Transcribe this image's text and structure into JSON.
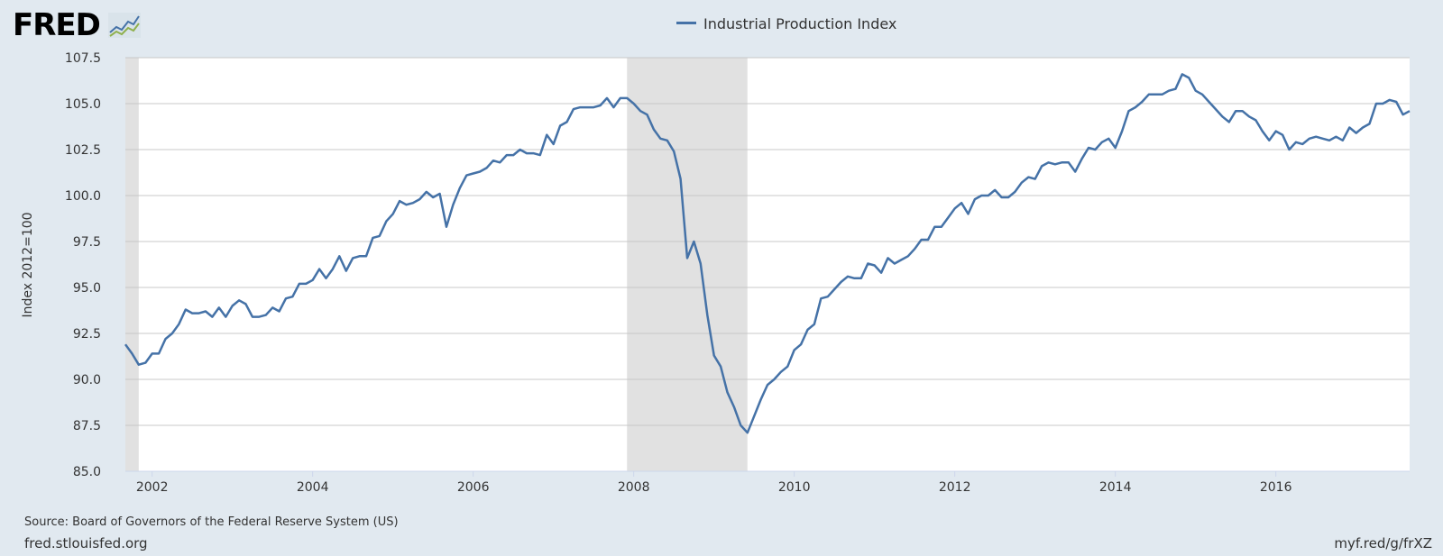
{
  "logo": {
    "text": "FRED"
  },
  "footer": {
    "source": "Source: Board of Governors of the Federal Reserve System (US)",
    "site": "fred.stlouisfed.org",
    "shortlink": "myf.red/g/frXZ"
  },
  "colors": {
    "line": "#4572a7",
    "recession": "#e1e1e1",
    "background": "#e1e9f0",
    "plot": "#ffffff",
    "grid": "#c8c8c8"
  },
  "chart_data": {
    "type": "line",
    "legend": "Industrial Production Index",
    "legend_position": "top-center",
    "ylabel": "Index 2012=100",
    "xlabel": "",
    "ylim": [
      85.0,
      107.5
    ],
    "yticks": [
      "85.0",
      "87.5",
      "90.0",
      "92.5",
      "95.0",
      "97.5",
      "100.0",
      "102.5",
      "105.0",
      "107.5"
    ],
    "xlim": [
      "2001-09",
      "2017-09"
    ],
    "xticks": [
      "2002",
      "2004",
      "2006",
      "2008",
      "2010",
      "2012",
      "2014",
      "2016"
    ],
    "grid": true,
    "recessions": [
      [
        "2001-03",
        "2001-11"
      ],
      [
        "2007-12",
        "2009-06"
      ]
    ],
    "series": [
      {
        "x": [
          "2001-09",
          "2001-10",
          "2001-11",
          "2001-12",
          "2002-01",
          "2002-02",
          "2002-03",
          "2002-04",
          "2002-05",
          "2002-06",
          "2002-07",
          "2002-08",
          "2002-09",
          "2002-10",
          "2002-11",
          "2002-12",
          "2003-01",
          "2003-02",
          "2003-03",
          "2003-04",
          "2003-05",
          "2003-06",
          "2003-07",
          "2003-08",
          "2003-09",
          "2003-10",
          "2003-11",
          "2003-12",
          "2004-01",
          "2004-02",
          "2004-03",
          "2004-04",
          "2004-05",
          "2004-06",
          "2004-07",
          "2004-08",
          "2004-09",
          "2004-10",
          "2004-11",
          "2004-12",
          "2005-01",
          "2005-02",
          "2005-03",
          "2005-04",
          "2005-05",
          "2005-06",
          "2005-07",
          "2005-08",
          "2005-09",
          "2005-10",
          "2005-11",
          "2005-12",
          "2006-01",
          "2006-02",
          "2006-03",
          "2006-04",
          "2006-05",
          "2006-06",
          "2006-07",
          "2006-08",
          "2006-09",
          "2006-10",
          "2006-11",
          "2006-12",
          "2007-01",
          "2007-02",
          "2007-03",
          "2007-04",
          "2007-05",
          "2007-06",
          "2007-07",
          "2007-08",
          "2007-09",
          "2007-10",
          "2007-11",
          "2007-12",
          "2008-01",
          "2008-02",
          "2008-03",
          "2008-04",
          "2008-05",
          "2008-06",
          "2008-07",
          "2008-08",
          "2008-09",
          "2008-10",
          "2008-11",
          "2008-12",
          "2009-01",
          "2009-02",
          "2009-03",
          "2009-04",
          "2009-05",
          "2009-06",
          "2009-07",
          "2009-08",
          "2009-09",
          "2009-10",
          "2009-11",
          "2009-12",
          "2010-01",
          "2010-02",
          "2010-03",
          "2010-04",
          "2010-05",
          "2010-06",
          "2010-07",
          "2010-08",
          "2010-09",
          "2010-10",
          "2010-11",
          "2010-12",
          "2011-01",
          "2011-02",
          "2011-03",
          "2011-04",
          "2011-05",
          "2011-06",
          "2011-07",
          "2011-08",
          "2011-09",
          "2011-10",
          "2011-11",
          "2011-12",
          "2012-01",
          "2012-02",
          "2012-03",
          "2012-04",
          "2012-05",
          "2012-06",
          "2012-07",
          "2012-08",
          "2012-09",
          "2012-10",
          "2012-11",
          "2012-12",
          "2013-01",
          "2013-02",
          "2013-03",
          "2013-04",
          "2013-05",
          "2013-06",
          "2013-07",
          "2013-08",
          "2013-09",
          "2013-10",
          "2013-11",
          "2013-12",
          "2014-01",
          "2014-02",
          "2014-03",
          "2014-04",
          "2014-05",
          "2014-06",
          "2014-07",
          "2014-08",
          "2014-09",
          "2014-10",
          "2014-11",
          "2014-12",
          "2015-01",
          "2015-02",
          "2015-03",
          "2015-04",
          "2015-05",
          "2015-06",
          "2015-07",
          "2015-08",
          "2015-09",
          "2015-10",
          "2015-11",
          "2015-12",
          "2016-01",
          "2016-02",
          "2016-03",
          "2016-04",
          "2016-05",
          "2016-06",
          "2016-07",
          "2016-08",
          "2016-09",
          "2016-10",
          "2016-11",
          "2016-12",
          "2017-01",
          "2017-02",
          "2017-03",
          "2017-04",
          "2017-05",
          "2017-06",
          "2017-07",
          "2017-08",
          "2017-09"
        ],
        "values": [
          91.9,
          91.4,
          90.8,
          90.9,
          91.4,
          91.4,
          92.2,
          92.5,
          93.0,
          93.8,
          93.6,
          93.6,
          93.7,
          93.4,
          93.9,
          93.4,
          94.0,
          94.3,
          94.1,
          93.4,
          93.4,
          93.5,
          93.9,
          93.7,
          94.4,
          94.5,
          95.2,
          95.2,
          95.4,
          96.0,
          95.5,
          96.0,
          96.7,
          95.9,
          96.6,
          96.7,
          96.7,
          97.7,
          97.8,
          98.6,
          99.0,
          99.7,
          99.5,
          99.6,
          99.8,
          100.2,
          99.9,
          100.1,
          98.3,
          99.5,
          100.4,
          101.1,
          101.2,
          101.3,
          101.5,
          101.9,
          101.8,
          102.2,
          102.2,
          102.5,
          102.3,
          102.3,
          102.2,
          103.3,
          102.8,
          103.8,
          104.0,
          104.7,
          104.8,
          104.8,
          104.8,
          104.9,
          105.3,
          104.8,
          105.3,
          105.3,
          105.0,
          104.6,
          104.4,
          103.6,
          103.1,
          103.0,
          102.4,
          100.9,
          96.6,
          97.5,
          96.3,
          93.5,
          91.3,
          90.7,
          89.3,
          88.5,
          87.5,
          87.1,
          88.0,
          88.9,
          89.7,
          90.0,
          90.4,
          90.7,
          91.6,
          91.9,
          92.7,
          93.0,
          94.4,
          94.5,
          94.9,
          95.3,
          95.6,
          95.5,
          95.5,
          96.3,
          96.2,
          95.8,
          96.6,
          96.3,
          96.5,
          96.7,
          97.1,
          97.6,
          97.6,
          98.3,
          98.3,
          98.8,
          99.3,
          99.6,
          99.0,
          99.8,
          100.0,
          100.0,
          100.3,
          99.9,
          99.9,
          100.2,
          100.7,
          101.0,
          100.9,
          101.6,
          101.8,
          101.7,
          101.8,
          101.8,
          101.3,
          102.0,
          102.6,
          102.5,
          102.9,
          103.1,
          102.6,
          103.5,
          104.6,
          104.8,
          105.1,
          105.5,
          105.5,
          105.5,
          105.7,
          105.8,
          106.6,
          106.4,
          105.7,
          105.5,
          105.1,
          104.7,
          104.3,
          104.0,
          104.6,
          104.6,
          104.3,
          104.1,
          103.5,
          103.0,
          103.5,
          103.3,
          102.5,
          102.9,
          102.8,
          103.1,
          103.2,
          103.1,
          103.0,
          103.2,
          103.0,
          103.7,
          103.4,
          103.7,
          103.9,
          105.0,
          105.0,
          105.2,
          105.1,
          104.4,
          104.6
        ]
      }
    ]
  }
}
